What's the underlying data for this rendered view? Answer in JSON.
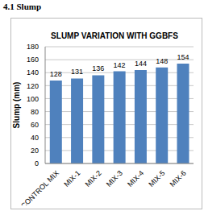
{
  "heading": "4.1 Slump",
  "chart_data": {
    "type": "bar",
    "title": "SLUMP VARIATION WITH GGBFS",
    "y_label": "Slump (mm)",
    "categories": [
      "CONTROL MIX",
      "MIX-1",
      "MIX-2",
      "MIX-3",
      "MIX-4",
      "MIX-5",
      "MIX-6"
    ],
    "values": [
      128,
      131,
      136,
      142,
      144,
      148,
      154
    ],
    "color": "#4f81bd",
    "ylim": [
      0,
      180
    ],
    "yticks": [
      0,
      20,
      40,
      60,
      80,
      100,
      120,
      140,
      160,
      180
    ],
    "grid": true,
    "data_labels": true
  }
}
